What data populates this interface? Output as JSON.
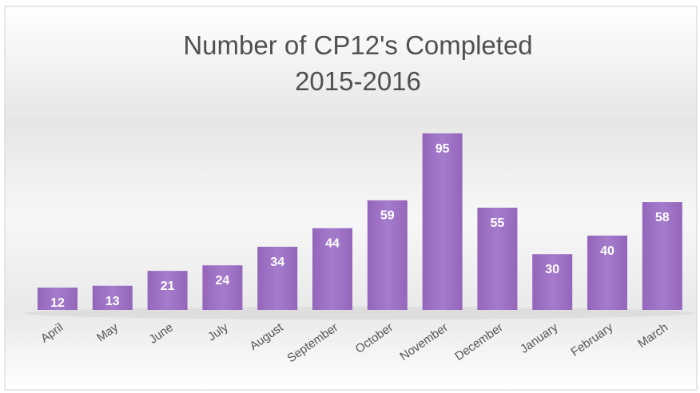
{
  "chart_data": {
    "type": "bar",
    "title": "Number of CP12's Completed",
    "subtitle": "2015-2016",
    "categories": [
      "April",
      "May",
      "June",
      "July",
      "August",
      "September",
      "October",
      "November",
      "December",
      "January",
      "February",
      "March"
    ],
    "values": [
      12,
      13,
      21,
      24,
      34,
      44,
      59,
      95,
      55,
      30,
      40,
      58
    ],
    "color": "#9a6cc0"
  }
}
